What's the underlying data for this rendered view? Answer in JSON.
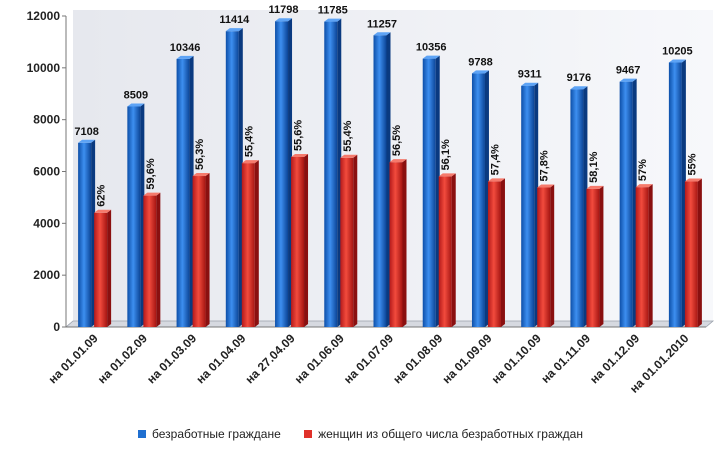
{
  "chart_data": {
    "type": "bar",
    "categories": [
      "на 01.01.09",
      "на 01.02.09",
      "на 01.03.09",
      "на 01.04.09",
      "на 27.04.09",
      "на 01.06.09",
      "на 01.07.09",
      "на 01.08.09",
      "на 01.09.09",
      "на 01.10.09",
      "на 01.11.09",
      "на 01.12.09",
      "на 01.01.2010"
    ],
    "series": [
      {
        "name": "безработные граждане",
        "color": "#1f6fd0",
        "values": [
          7108,
          8509,
          10346,
          11414,
          11798,
          11785,
          11257,
          10356,
          9788,
          9311,
          9176,
          9467,
          10205
        ],
        "labels": [
          "7108",
          "8509",
          "10346",
          "11414",
          "11798",
          "11785",
          "11257",
          "10356",
          "9788",
          "9311",
          "9176",
          "9467",
          "10205"
        ]
      },
      {
        "name": "женщин из общего числа безработных граждан",
        "color": "#e0312a",
        "values": [
          4407,
          5071,
          5825,
          6323,
          6560,
          6529,
          6360,
          5810,
          5618,
          5382,
          5331,
          5396,
          5613
        ],
        "labels": [
          "62%",
          "59,6%",
          "56,3%",
          "55,4%",
          "55,6%",
          "55,4%",
          "56,5%",
          "56,1%",
          "57,4%",
          "57,8%",
          "58,1%",
          "57%",
          "55%"
        ]
      }
    ],
    "yticks": [
      "0",
      "2000",
      "4000",
      "6000",
      "8000",
      "10000",
      "12000"
    ],
    "ylim": [
      0,
      12000
    ],
    "legend_position": "bottom",
    "grid": false
  }
}
